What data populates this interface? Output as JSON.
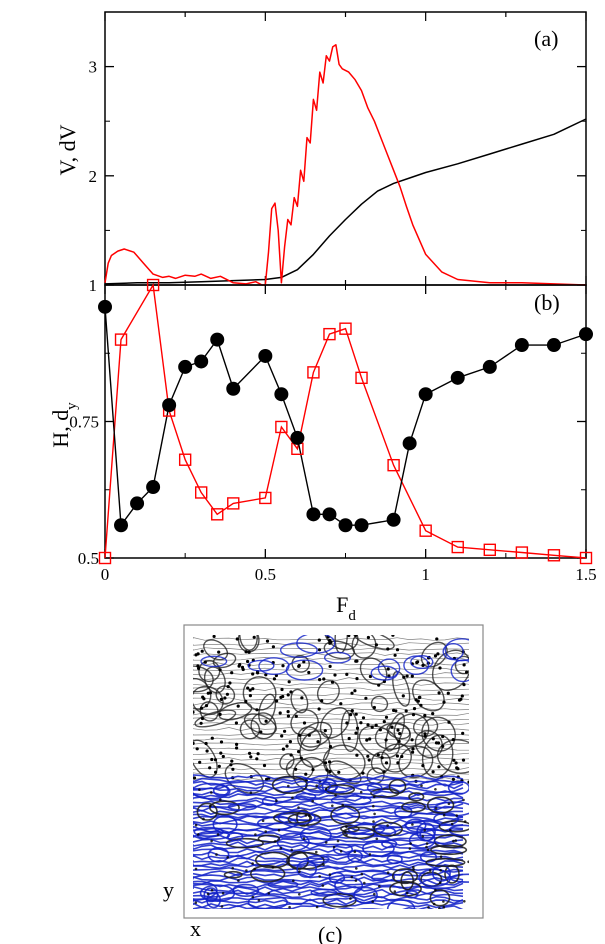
{
  "chart_data": [
    {
      "type": "line",
      "panel_label": "(a)",
      "ylabel": "V, dV",
      "xlim": [
        0,
        1.5
      ],
      "ylim": [
        1,
        3.5
      ],
      "yticks": [
        1,
        2,
        3
      ],
      "ytick_labels": [
        "1",
        "2",
        "3"
      ],
      "series": [
        {
          "color": "#000000",
          "x": [
            0,
            0.1,
            0.2,
            0.3,
            0.4,
            0.5,
            0.55,
            0.6,
            0.65,
            0.7,
            0.75,
            0.8,
            0.85,
            0.9,
            0.95,
            1.0,
            1.1,
            1.2,
            1.3,
            1.4,
            1.5
          ],
          "y": [
            1.01,
            1.02,
            1.02,
            1.03,
            1.04,
            1.05,
            1.07,
            1.14,
            1.28,
            1.45,
            1.6,
            1.74,
            1.86,
            1.93,
            1.98,
            2.03,
            2.11,
            2.2,
            2.29,
            2.38,
            2.52
          ]
        },
        {
          "color": "#ff0000",
          "x": [
            0,
            0.01,
            0.02,
            0.04,
            0.06,
            0.09,
            0.12,
            0.15,
            0.18,
            0.2,
            0.22,
            0.25,
            0.28,
            0.3,
            0.33,
            0.36,
            0.4,
            0.44,
            0.47,
            0.49,
            0.5,
            0.51,
            0.52,
            0.53,
            0.54,
            0.55,
            0.56,
            0.57,
            0.58,
            0.59,
            0.6,
            0.61,
            0.62,
            0.63,
            0.64,
            0.65,
            0.66,
            0.67,
            0.68,
            0.69,
            0.7,
            0.71,
            0.72,
            0.73,
            0.74,
            0.76,
            0.78,
            0.8,
            0.82,
            0.84,
            0.86,
            0.88,
            0.9,
            0.92,
            0.94,
            0.96,
            1.0,
            1.05,
            1.1,
            1.2,
            1.3,
            1.4,
            1.5
          ],
          "y": [
            1.02,
            1.2,
            1.27,
            1.31,
            1.33,
            1.3,
            1.2,
            1.1,
            1.07,
            1.08,
            1.06,
            1.09,
            1.08,
            1.1,
            1.06,
            1.08,
            1.02,
            1.01,
            1.03,
            1.0,
            1.0,
            1.3,
            1.7,
            1.75,
            1.5,
            1.02,
            1.35,
            1.6,
            1.55,
            1.8,
            1.72,
            2.05,
            1.95,
            2.35,
            2.3,
            2.7,
            2.6,
            2.95,
            2.85,
            3.1,
            3.05,
            3.18,
            3.2,
            3.02,
            2.98,
            2.95,
            2.88,
            2.78,
            2.62,
            2.5,
            2.35,
            2.2,
            2.05,
            1.9,
            1.72,
            1.55,
            1.28,
            1.12,
            1.05,
            1.02,
            1.02,
            1.01,
            1.0
          ]
        }
      ]
    },
    {
      "type": "line",
      "panel_label": "(b)",
      "xlabel": "F",
      "xlabel_sub": "d",
      "ylabel": "H, d",
      "ylabel_sub": "y",
      "xlim": [
        0,
        1.5
      ],
      "ylim": [
        0.5,
        1.0
      ],
      "xticks": [
        0,
        0.5,
        1,
        1.5
      ],
      "xtick_labels": [
        "0",
        "0.5",
        "1",
        "1.5"
      ],
      "yticks": [
        0.5,
        0.75
      ],
      "ytick_labels": [
        "0.5",
        "0.75"
      ],
      "series": [
        {
          "color": "#000000",
          "marker": "filled-circle",
          "x": [
            0,
            0.05,
            0.1,
            0.15,
            0.2,
            0.25,
            0.3,
            0.35,
            0.4,
            0.5,
            0.55,
            0.6,
            0.65,
            0.7,
            0.75,
            0.8,
            0.9,
            0.95,
            1.0,
            1.1,
            1.2,
            1.3,
            1.4,
            1.5
          ],
          "y": [
            0.96,
            0.56,
            0.6,
            0.63,
            0.78,
            0.85,
            0.86,
            0.9,
            0.81,
            0.87,
            0.8,
            0.72,
            0.58,
            0.58,
            0.56,
            0.56,
            0.57,
            0.71,
            0.8,
            0.83,
            0.85,
            0.89,
            0.89,
            0.91
          ]
        },
        {
          "color": "#ff0000",
          "marker": "open-square",
          "x": [
            0,
            0.05,
            0.15,
            0.2,
            0.25,
            0.3,
            0.35,
            0.4,
            0.5,
            0.55,
            0.6,
            0.65,
            0.7,
            0.75,
            0.8,
            0.9,
            1.0,
            1.1,
            1.2,
            1.3,
            1.4,
            1.5
          ],
          "y": [
            0.5,
            0.9,
            1.0,
            0.77,
            0.68,
            0.62,
            0.58,
            0.6,
            0.61,
            0.74,
            0.7,
            0.84,
            0.91,
            0.92,
            0.83,
            0.67,
            0.55,
            0.52,
            0.515,
            0.51,
            0.505,
            0.5
          ]
        }
      ]
    }
  ],
  "panel_c": {
    "label": "(c)",
    "x_axis": "x",
    "y_axis": "y",
    "colors": {
      "upper": "#1a1a1a",
      "lower": "#1020c8",
      "frame": "#888888"
    }
  }
}
